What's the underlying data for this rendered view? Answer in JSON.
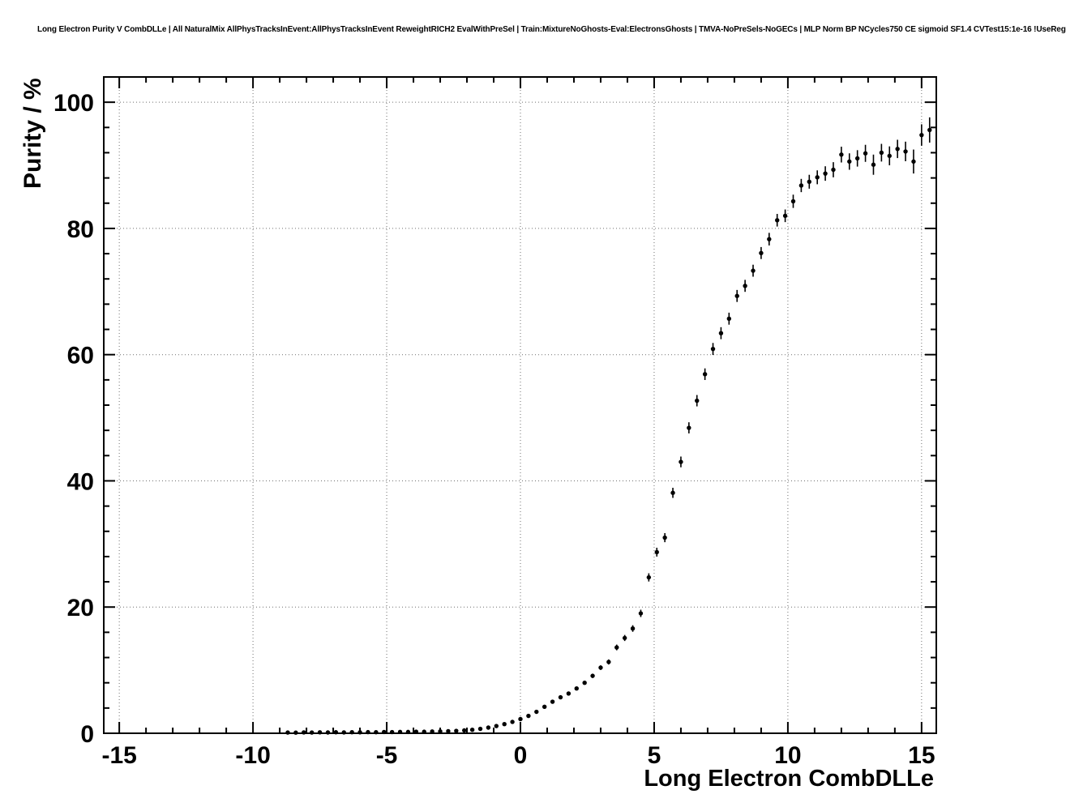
{
  "chart_data": {
    "type": "scatter",
    "title": "Long Electron Purity V CombDLLe | All NaturalMix AllPhysTracksInEvent:AllPhysTracksInEvent ReweightRICH2 EvalWithPreSel | Train:MixtureNoGhosts-Eval:ElectronsGhosts | TMVA-NoPreSels-NoGECs | MLP Norm BP NCycles750 CE sigmoid SF1.4 CVTest15:1e-16 !UseReg",
    "xlabel": "Long Electron CombDLLe",
    "ylabel": "Purity / %",
    "xlim": [
      -15.58,
      15.55
    ],
    "ylim": [
      0,
      104
    ],
    "xticks": [
      -15,
      -10,
      -5,
      0,
      5,
      10,
      15
    ],
    "yticks": [
      0,
      20,
      40,
      60,
      80,
      100
    ],
    "x_minor_step": 1,
    "y_minor_step": 4,
    "grid": true,
    "grid_style": "dotted",
    "legend": "none",
    "marker": "filled-circle",
    "color": "#000000",
    "x": [
      -8.7,
      -8.4,
      -8.1,
      -7.8,
      -7.5,
      -7.2,
      -6.9,
      -6.6,
      -6.3,
      -6.0,
      -5.7,
      -5.4,
      -5.1,
      -4.8,
      -4.5,
      -4.2,
      -3.9,
      -3.6,
      -3.3,
      -3.0,
      -2.7,
      -2.4,
      -2.1,
      -1.8,
      -1.5,
      -1.2,
      -0.9,
      -0.6,
      -0.3,
      0.0,
      0.3,
      0.6,
      0.9,
      1.2,
      1.5,
      1.8,
      2.1,
      2.4,
      2.7,
      3.0,
      3.3,
      3.6,
      3.9,
      4.2,
      4.5,
      4.8,
      5.1,
      5.4,
      5.7,
      6.0,
      6.3,
      6.6,
      6.9,
      7.2,
      7.5,
      7.8,
      8.1,
      8.4,
      8.7,
      9.0,
      9.3,
      9.6,
      9.9,
      10.2,
      10.5,
      10.8,
      11.1,
      11.4,
      11.7,
      12.0,
      12.3,
      12.6,
      12.9,
      13.2,
      13.5,
      13.8,
      14.1,
      14.4,
      14.7,
      15.0,
      15.3
    ],
    "y": [
      0.12,
      0.1,
      0.14,
      0.12,
      0.15,
      0.13,
      0.16,
      0.14,
      0.17,
      0.15,
      0.18,
      0.17,
      0.2,
      0.19,
      0.22,
      0.21,
      0.25,
      0.24,
      0.28,
      0.3,
      0.33,
      0.38,
      0.45,
      0.55,
      0.7,
      0.9,
      1.15,
      1.45,
      1.8,
      2.25,
      2.75,
      3.4,
      4.2,
      5.0,
      5.7,
      6.3,
      7.1,
      8.0,
      9.1,
      10.4,
      11.3,
      13.6,
      15.1,
      16.6,
      19.0,
      24.7,
      28.7,
      31.0,
      38.1,
      43.0,
      48.4,
      52.7,
      56.9,
      60.9,
      63.4,
      65.7,
      69.3,
      70.9,
      73.3,
      76.1,
      78.3,
      81.3,
      82.0,
      84.3,
      86.8,
      87.4,
      88.1,
      88.7,
      89.3,
      91.7,
      90.6,
      91.1,
      91.9,
      90.1,
      92.0,
      91.5,
      92.6,
      92.2,
      90.6,
      94.8,
      95.6
    ],
    "ey": [
      0.04,
      0.04,
      0.04,
      0.04,
      0.04,
      0.04,
      0.04,
      0.04,
      0.04,
      0.04,
      0.04,
      0.04,
      0.04,
      0.04,
      0.04,
      0.04,
      0.04,
      0.04,
      0.04,
      0.04,
      0.04,
      0.04,
      0.05,
      0.06,
      0.07,
      0.08,
      0.09,
      0.1,
      0.12,
      0.13,
      0.15,
      0.17,
      0.19,
      0.21,
      0.23,
      0.25,
      0.27,
      0.3,
      0.33,
      0.36,
      0.4,
      0.45,
      0.48,
      0.52,
      0.58,
      0.65,
      0.7,
      0.72,
      0.8,
      0.85,
      0.88,
      0.9,
      0.92,
      0.95,
      0.95,
      0.95,
      0.95,
      0.95,
      0.95,
      0.95,
      1.0,
      1.0,
      1.0,
      1.05,
      1.05,
      1.1,
      1.1,
      1.15,
      1.2,
      1.25,
      1.3,
      1.3,
      1.35,
      1.6,
      1.4,
      1.5,
      1.45,
      1.55,
      1.9,
      1.7,
      2.0
    ]
  }
}
